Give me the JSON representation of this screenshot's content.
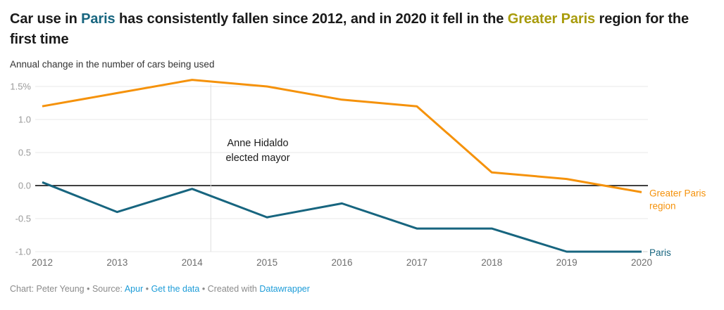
{
  "colors": {
    "title_paris": "#17657f",
    "title_greater": "#a89b0b",
    "link_blue": "#1d9cd8",
    "footer_gray": "#8b8b8b",
    "axis_tick_gray": "#9a9a9a",
    "axis_year_gray": "#6e6e6e",
    "gridline": "#e8e8e8",
    "zero_line": "#000000",
    "annotation_line": "#dedede",
    "annotation_text": "#1a1a1a"
  },
  "header": {
    "title_parts": [
      {
        "text": "Car use in ",
        "color_key": ""
      },
      {
        "text": "Paris",
        "color_key": "title_paris"
      },
      {
        "text": " has consistently fallen since 2012, and in 2020 it fell in the ",
        "color_key": ""
      },
      {
        "text": "Greater Paris",
        "color_key": "title_greater"
      },
      {
        "text": " region for the first time",
        "color_key": ""
      }
    ],
    "subtitle": "Annual change in the number of cars being used"
  },
  "chart_data": {
    "type": "line",
    "title": "Car use in Paris has consistently fallen since 2012, and in 2020 it fell in the Greater Paris region for the first time",
    "subtitle": "Annual change in the number of cars being used",
    "x": [
      "2012",
      "2013",
      "2014",
      "2015",
      "2016",
      "2017",
      "2018",
      "2019",
      "2020"
    ],
    "series": [
      {
        "name": "Greater Paris region",
        "color": "#f5920b",
        "label_lines": [
          "Greater Paris",
          "region"
        ],
        "values": [
          1.2,
          1.4,
          1.6,
          1.5,
          1.3,
          1.2,
          0.2,
          0.1,
          -0.1
        ]
      },
      {
        "name": "Paris",
        "color": "#17657f",
        "label_lines": [
          "Paris"
        ],
        "values": [
          0.05,
          -0.4,
          -0.05,
          -0.48,
          -0.27,
          -0.65,
          -0.65,
          -1.0,
          -1.0
        ]
      }
    ],
    "ylim": [
      -1.0,
      1.6
    ],
    "yticks": [
      {
        "v": 1.5,
        "label": "1.5%"
      },
      {
        "v": 1.0,
        "label": "1.0"
      },
      {
        "v": 0.5,
        "label": "0.5"
      },
      {
        "v": 0.0,
        "label": "0.0"
      },
      {
        "v": -0.5,
        "label": "-0.5"
      },
      {
        "v": -1.0,
        "label": "-1.0"
      }
    ],
    "grid": true,
    "legend_position": "direct-labels-right",
    "annotation": {
      "lines": [
        "Anne Hidaldo",
        "elected mayor"
      ],
      "x_year": 2014.25,
      "has_vertical_line": true
    }
  },
  "footer": {
    "parts": [
      {
        "text": "Chart: Peter Yeung • Source: ",
        "link": false
      },
      {
        "text": "Apur",
        "link": true
      },
      {
        "text": " • ",
        "link": false
      },
      {
        "text": "Get the data",
        "link": true
      },
      {
        "text": " • Created with ",
        "link": false
      },
      {
        "text": "Datawrapper",
        "link": true
      }
    ]
  }
}
